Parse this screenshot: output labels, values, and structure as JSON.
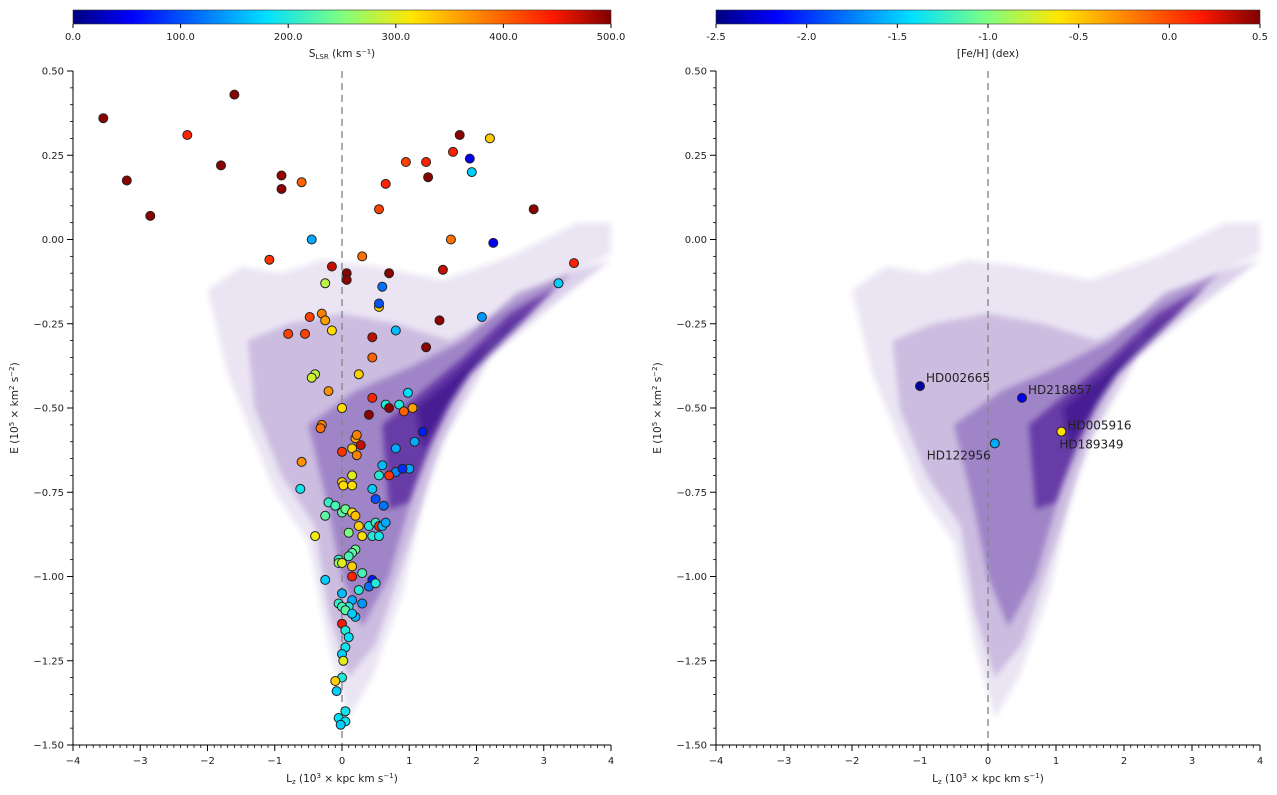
{
  "chart_data": [
    {
      "type": "scatter",
      "panel": "left",
      "xlabel": "L_z (10^3 × kpc km s^-1)",
      "ylabel": "E (10^5 × km^2 s^-2)",
      "xlim": [
        -4,
        4
      ],
      "ylim": [
        -1.5,
        0.5
      ],
      "x_ticks": [
        "−4",
        "−3",
        "−2",
        "−1",
        "0",
        "1",
        "2",
        "3",
        "4"
      ],
      "y_ticks": [
        "0.50",
        "0.25",
        "0.00",
        "−0.25",
        "−0.50",
        "−0.75",
        "−1.00",
        "−1.25",
        "−1.50"
      ],
      "reference_line": {
        "x": 0,
        "style": "dashed"
      },
      "background": "2D density histogram of stars (purple)",
      "colorbar": {
        "label_main": "S",
        "label_sub": "LSR",
        "label_unit": " (km s⁻¹)",
        "range": [
          0,
          500
        ],
        "ticks": [
          "0.0",
          "100.0",
          "200.0",
          "300.0",
          "400.0",
          "500.0"
        ]
      },
      "points": [
        [
          -3.55,
          0.36,
          495
        ],
        [
          -3.2,
          0.175,
          495
        ],
        [
          -2.85,
          0.07,
          495
        ],
        [
          -2.3,
          0.31,
          440
        ],
        [
          -1.8,
          0.22,
          495
        ],
        [
          -1.6,
          0.43,
          495
        ],
        [
          -0.9,
          0.19,
          490
        ],
        [
          -0.9,
          0.15,
          495
        ],
        [
          -0.6,
          0.17,
          400
        ],
        [
          -1.08,
          -0.06,
          430
        ],
        [
          -0.45,
          0.0,
          150
        ],
        [
          -0.15,
          -0.08,
          470
        ],
        [
          0.07,
          -0.1,
          495
        ],
        [
          0.07,
          -0.12,
          495
        ],
        [
          0.3,
          -0.05,
          390
        ],
        [
          -0.25,
          -0.13,
          280
        ],
        [
          -0.8,
          -0.28,
          420
        ],
        [
          -0.55,
          -0.28,
          420
        ],
        [
          -0.48,
          -0.23,
          420
        ],
        [
          -0.3,
          -0.22,
          380
        ],
        [
          -0.25,
          -0.24,
          360
        ],
        [
          -0.15,
          -0.27,
          320
        ],
        [
          -0.4,
          -0.4,
          280
        ],
        [
          -0.45,
          -0.41,
          290
        ],
        [
          -0.3,
          -0.55,
          380
        ],
        [
          -0.32,
          -0.56,
          390
        ],
        [
          -0.6,
          -0.66,
          370
        ],
        [
          -0.62,
          -0.74,
          190
        ],
        [
          -0.2,
          -0.45,
          370
        ],
        [
          0.0,
          -0.5,
          320
        ],
        [
          0.25,
          -0.4,
          330
        ],
        [
          0.45,
          -0.35,
          400
        ],
        [
          0.45,
          -0.29,
          470
        ],
        [
          0.55,
          -0.2,
          330
        ],
        [
          0.55,
          -0.19,
          100
        ],
        [
          0.6,
          -0.14,
          120
        ],
        [
          0.55,
          0.09,
          420
        ],
        [
          0.65,
          0.165,
          440
        ],
        [
          0.95,
          0.23,
          420
        ],
        [
          1.25,
          0.23,
          440
        ],
        [
          1.28,
          0.185,
          495
        ],
        [
          1.75,
          0.31,
          495
        ],
        [
          1.65,
          0.26,
          440
        ],
        [
          1.9,
          0.24,
          50
        ],
        [
          1.93,
          0.2,
          170
        ],
        [
          2.2,
          0.3,
          330
        ],
        [
          2.25,
          -0.01,
          50
        ],
        [
          2.85,
          0.09,
          495
        ],
        [
          1.62,
          0.0,
          390
        ],
        [
          1.5,
          -0.09,
          470
        ],
        [
          0.7,
          -0.1,
          495
        ],
        [
          0.8,
          -0.27,
          160
        ],
        [
          1.45,
          -0.24,
          495
        ],
        [
          2.08,
          -0.23,
          140
        ],
        [
          3.45,
          -0.07,
          440
        ],
        [
          3.22,
          -0.13,
          170
        ],
        [
          1.25,
          -0.32,
          495
        ],
        [
          0.45,
          -0.47,
          440
        ],
        [
          0.4,
          -0.52,
          495
        ],
        [
          0.65,
          -0.49,
          200
        ],
        [
          0.85,
          -0.49,
          200
        ],
        [
          0.98,
          -0.455,
          180
        ],
        [
          1.05,
          -0.5,
          360
        ],
        [
          0.92,
          -0.51,
          400
        ],
        [
          0.7,
          -0.5,
          495
        ],
        [
          0.2,
          -0.59,
          360
        ],
        [
          0.15,
          -0.62,
          330
        ],
        [
          0.22,
          -0.58,
          380
        ],
        [
          0.28,
          -0.61,
          470
        ],
        [
          0.22,
          -0.64,
          380
        ],
        [
          0.0,
          -0.63,
          430
        ],
        [
          0.8,
          -0.62,
          150
        ],
        [
          1.2,
          -0.57,
          70
        ],
        [
          1.08,
          -0.6,
          150
        ],
        [
          0.8,
          -0.69,
          130
        ],
        [
          1.0,
          -0.68,
          150
        ],
        [
          0.9,
          -0.68,
          80
        ],
        [
          0.6,
          -0.67,
          160
        ],
        [
          0.7,
          -0.7,
          430
        ],
        [
          0.55,
          -0.7,
          200
        ],
        [
          0.45,
          -0.74,
          170
        ],
        [
          0.5,
          -0.77,
          100
        ],
        [
          0.62,
          -0.79,
          120
        ],
        [
          0.0,
          -0.72,
          330
        ],
        [
          0.02,
          -0.73,
          320
        ],
        [
          0.15,
          -0.73,
          320
        ],
        [
          0.15,
          -0.7,
          300
        ],
        [
          -0.2,
          -0.78,
          210
        ],
        [
          -0.1,
          -0.79,
          220
        ],
        [
          0.0,
          -0.81,
          230
        ],
        [
          0.05,
          -0.8,
          240
        ],
        [
          0.15,
          -0.81,
          320
        ],
        [
          0.2,
          -0.82,
          340
        ],
        [
          0.25,
          -0.85,
          330
        ],
        [
          0.1,
          -0.87,
          250
        ],
        [
          -0.25,
          -0.82,
          230
        ],
        [
          -0.4,
          -0.88,
          310
        ],
        [
          0.4,
          -0.85,
          200
        ],
        [
          0.5,
          -0.84,
          210
        ],
        [
          0.55,
          -0.85,
          440
        ],
        [
          0.6,
          -0.85,
          160
        ],
        [
          0.65,
          -0.84,
          150
        ],
        [
          0.3,
          -0.88,
          320
        ],
        [
          0.45,
          -0.88,
          200
        ],
        [
          0.55,
          -0.88,
          190
        ],
        [
          0.2,
          -0.92,
          240
        ],
        [
          0.15,
          -0.93,
          230
        ],
        [
          0.1,
          -0.94,
          220
        ],
        [
          -0.05,
          -0.95,
          210
        ],
        [
          -0.05,
          -0.96,
          260
        ],
        [
          0.0,
          -0.96,
          300
        ],
        [
          0.15,
          -0.97,
          330
        ],
        [
          0.45,
          -1.01,
          70
        ],
        [
          0.4,
          -1.03,
          120
        ],
        [
          0.25,
          -1.04,
          200
        ],
        [
          0.3,
          -1.08,
          140
        ],
        [
          0.15,
          -1.07,
          150
        ],
        [
          0.1,
          -1.09,
          200
        ],
        [
          0.0,
          -1.05,
          160
        ],
        [
          -0.25,
          -1.01,
          170
        ],
        [
          -0.05,
          -1.08,
          210
        ],
        [
          0.0,
          -1.09,
          220
        ],
        [
          0.05,
          -1.1,
          230
        ],
        [
          0.2,
          -1.12,
          160
        ],
        [
          0.15,
          -1.11,
          170
        ],
        [
          0.0,
          -1.14,
          450
        ],
        [
          0.05,
          -1.16,
          200
        ],
        [
          0.1,
          -1.18,
          180
        ],
        [
          0.05,
          -1.21,
          190
        ],
        [
          0.0,
          -1.23,
          170
        ],
        [
          0.02,
          -1.25,
          300
        ],
        [
          0.0,
          -1.3,
          200
        ],
        [
          -0.1,
          -1.31,
          330
        ],
        [
          -0.08,
          -1.34,
          170
        ],
        [
          0.05,
          -1.4,
          190
        ],
        [
          -0.05,
          -1.42,
          180
        ],
        [
          0.05,
          -1.43,
          190
        ],
        [
          -0.02,
          -1.44,
          170
        ],
        [
          0.15,
          -1.0,
          440
        ],
        [
          0.5,
          -1.02,
          200
        ],
        [
          0.3,
          -0.99,
          220
        ]
      ]
    },
    {
      "type": "scatter",
      "panel": "right",
      "xlabel": "L_z (10^3 × kpc km s^-1)",
      "ylabel": "E (10^5 × km^2 s^-2)",
      "xlim": [
        -4,
        4
      ],
      "ylim": [
        -1.5,
        0.5
      ],
      "x_ticks": [
        "−4",
        "−3",
        "−2",
        "−1",
        "0",
        "1",
        "2",
        "3",
        "4"
      ],
      "y_ticks": [
        "0.50",
        "0.25",
        "0.00",
        "−0.25",
        "−0.50",
        "−0.75",
        "−1.00",
        "−1.25",
        "−1.50"
      ],
      "reference_line": {
        "x": 0,
        "style": "dashed"
      },
      "background": "2D density histogram of stars (purple)",
      "colorbar": {
        "label": "[Fe/H] (dex)",
        "range": [
          -2.5,
          0.5
        ],
        "ticks": [
          "-2.5",
          "-2.0",
          "-1.5",
          "-1.0",
          "-0.5",
          "0.0",
          "0.5"
        ]
      },
      "points": [
        {
          "name": "HD002665",
          "x": -1.0,
          "y": -0.435,
          "feh": -2.4
        },
        {
          "name": "HD218857",
          "x": 0.5,
          "y": -0.47,
          "feh": -2.2
        },
        {
          "name": "HD122956",
          "x": 0.1,
          "y": -0.605,
          "feh": -1.6
        },
        {
          "name": "HD005916",
          "x": 1.08,
          "y": -0.57,
          "feh": -0.7
        },
        {
          "name": "HD189349",
          "x": 1.08,
          "y": -0.57,
          "feh": -0.6
        }
      ]
    }
  ]
}
